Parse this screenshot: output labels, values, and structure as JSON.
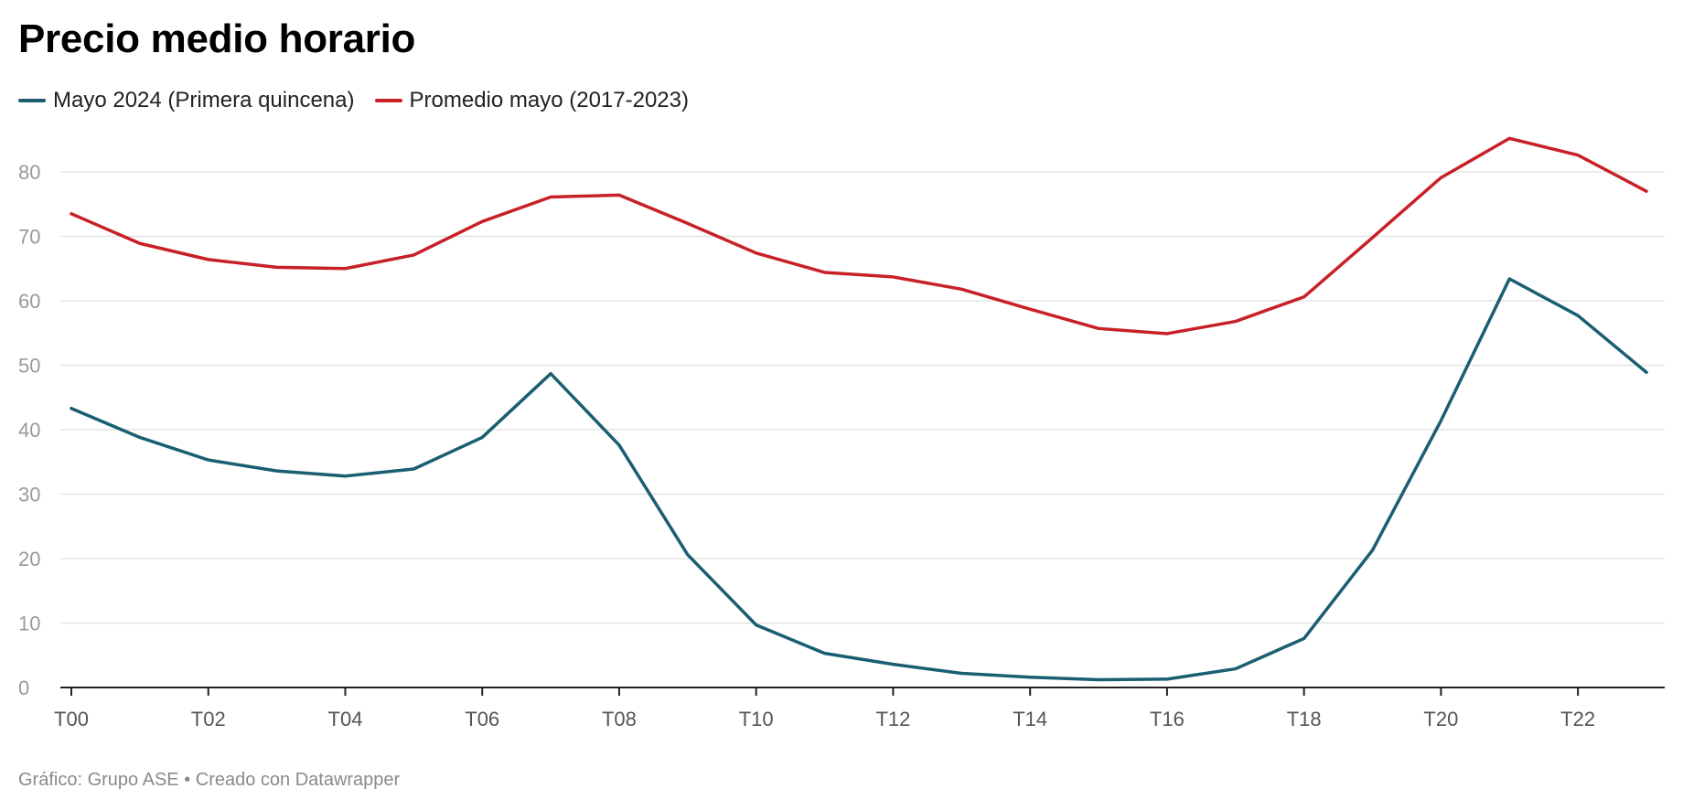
{
  "chart_data": {
    "type": "line",
    "title": "Precio medio horario",
    "xlabel": "",
    "ylabel": "",
    "x": [
      "T00",
      "T01",
      "T02",
      "T03",
      "T04",
      "T05",
      "T06",
      "T07",
      "T08",
      "T09",
      "T10",
      "T11",
      "T12",
      "T13",
      "T14",
      "T15",
      "T16",
      "T17",
      "T18",
      "T19",
      "T20",
      "T21",
      "T22",
      "T23"
    ],
    "x_tick_labels": [
      "T00",
      "T02",
      "T04",
      "T06",
      "T08",
      "T10",
      "T12",
      "T14",
      "T16",
      "T18",
      "T20",
      "T22"
    ],
    "y_ticks": [
      0,
      10,
      20,
      30,
      40,
      50,
      60,
      70,
      80
    ],
    "ylim": [
      0,
      80
    ],
    "grid": true,
    "legend_position": "top-left",
    "series": [
      {
        "name": "Mayo 2024 (Primera quincena)",
        "color": "#1a5e72",
        "values": [
          43.3,
          38.8,
          35.3,
          33.6,
          32.8,
          33.9,
          38.8,
          48.7,
          37.6,
          20.6,
          9.7,
          5.3,
          3.6,
          2.2,
          1.6,
          1.2,
          1.3,
          2.9,
          7.6,
          21.3,
          41.4,
          63.4,
          57.7,
          48.9
        ]
      },
      {
        "name": "Promedio mayo (2017-2023)",
        "color": "#c72127",
        "values": [
          73.5,
          68.9,
          66.4,
          65.2,
          65.0,
          67.1,
          72.3,
          76.1,
          76.4,
          72.0,
          67.4,
          64.4,
          63.7,
          61.8,
          58.7,
          55.7,
          54.9,
          56.8,
          60.6,
          69.8,
          79.1,
          85.2,
          82.6,
          77.0
        ]
      }
    ]
  },
  "footer": {
    "text": "Gráfico: Grupo ASE • Creado con Datawrapper"
  },
  "colors": {
    "axis_tick_label": "#9a9a9a",
    "x_tick_label": "#555555",
    "grid": "#e3e3e3",
    "baseline": "#222222"
  }
}
